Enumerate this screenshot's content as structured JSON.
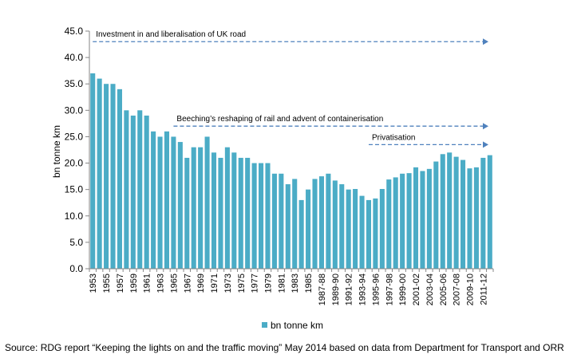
{
  "chart_data": {
    "type": "bar",
    "ylabel": "bn tonne km",
    "ylim": [
      0,
      45
    ],
    "yticks": [
      "0.0",
      "5.0",
      "10.0",
      "15.0",
      "20.0",
      "25.0",
      "30.0",
      "35.0",
      "40.0",
      "45.0"
    ],
    "grid": false,
    "legend_position": "bottom",
    "bar_color": "#4bacc6",
    "arrow_color": "#4f81bd",
    "categories": [
      "1953",
      "1954",
      "1955",
      "1956",
      "1957",
      "1958",
      "1959",
      "1960",
      "1961",
      "1962",
      "1963",
      "1964",
      "1965",
      "1966",
      "1967",
      "1968",
      "1969",
      "1970",
      "1971",
      "1972",
      "1973",
      "1974",
      "1975",
      "1976",
      "1977",
      "1978",
      "1979",
      "1980",
      "1981",
      "1982",
      "1983",
      "1984",
      "1985",
      "1986",
      "1987-88",
      "1988-89",
      "1989-90",
      "1990-91",
      "1991-92",
      "1992-93",
      "1993-94",
      "1994-95",
      "1995-96",
      "1996-97",
      "1997-98",
      "1998-99",
      "1999-00",
      "2000-01",
      "2001-02",
      "2002-03",
      "2003-04",
      "2004-05",
      "2005-06",
      "2006-07",
      "2007-08",
      "2008-09",
      "2009-10",
      "2010-11",
      "2011-12",
      "2012-13"
    ],
    "x_tick_labels": [
      "1953",
      "1955",
      "1957",
      "1959",
      "1961",
      "1963",
      "1965",
      "1967",
      "1969",
      "1971",
      "1973",
      "1975",
      "1977",
      "1979",
      "1981",
      "1983",
      "1985",
      "1987-88",
      "1989-90",
      "1991-92",
      "1993-94",
      "1995-96",
      "1997-98",
      "1999-00",
      "2001-02",
      "2003-04",
      "2005-06",
      "2007-08",
      "2009-10",
      "2011-12"
    ],
    "series": [
      {
        "name": "bn tonne km",
        "values": [
          37,
          36,
          35,
          35,
          34,
          30,
          29,
          30,
          29,
          26,
          25,
          26,
          25,
          24,
          21,
          23,
          23,
          25,
          22,
          21,
          23,
          22,
          21,
          21,
          20,
          20,
          20,
          18,
          18,
          16,
          17,
          13,
          15,
          17,
          17.5,
          18,
          16.7,
          16,
          15,
          15.1,
          13.8,
          13,
          13.3,
          15.1,
          16.9,
          17.3,
          18,
          18.1,
          19.2,
          18.5,
          18.9,
          20.3,
          21.7,
          22,
          21.2,
          20.6,
          19,
          19.2,
          21,
          21.5
        ]
      }
    ],
    "annotations": [
      {
        "text": "Investment in and liberalisation of UK road",
        "start_category": "1953",
        "level": 43
      },
      {
        "text": "Beeching’s reshaping of rail and advent of containerisation",
        "start_category": "1965",
        "level": 27
      },
      {
        "text": "Privatisation",
        "start_category": "1994-95",
        "level": 23.5
      }
    ]
  },
  "source": "Source: RDG report “Keeping the lights on and the traffic moving” May 2014 based on data from Department for Transport and ORR"
}
